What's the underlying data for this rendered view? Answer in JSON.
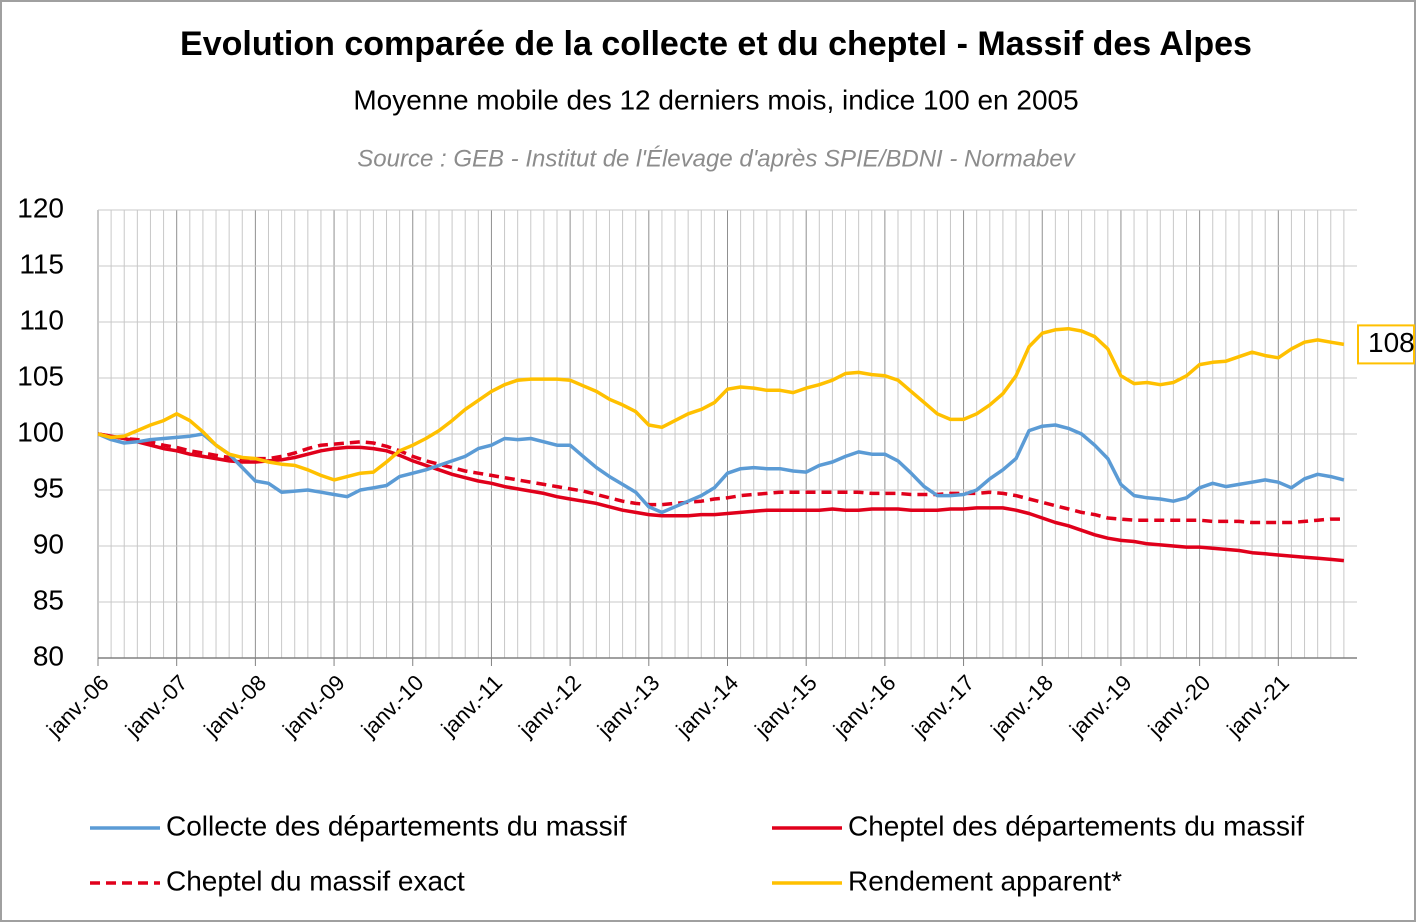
{
  "chart_data": {
    "type": "line",
    "title": "Evolution comparée de la collecte et du cheptel - Massif des Alpes",
    "subtitle": "Moyenne mobile des 12 derniers mois, indice 100 en 2005",
    "source": "Source : GEB - Institut de l'Élevage d'après SPIE/BDNI - Normabev",
    "categories": [
      "janv.-06",
      null,
      null,
      null,
      null,
      null,
      "janv.-07",
      null,
      null,
      null,
      null,
      null,
      "janv.-08",
      null,
      null,
      null,
      null,
      null,
      "janv.-09",
      null,
      null,
      null,
      null,
      null,
      "janv.-10",
      null,
      null,
      null,
      null,
      null,
      "janv.-11",
      null,
      null,
      null,
      null,
      null,
      "janv.-12",
      null,
      null,
      null,
      null,
      null,
      "janv.-13",
      null,
      null,
      null,
      null,
      null,
      "janv.-14",
      null,
      null,
      null,
      null,
      null,
      "janv.-15",
      null,
      null,
      null,
      null,
      null,
      "janv.-16",
      null,
      null,
      null,
      null,
      null,
      "janv.-17",
      null,
      null,
      null,
      null,
      null,
      "janv.-18",
      null,
      null,
      null,
      null,
      null,
      "janv.-19",
      null,
      null,
      null,
      null,
      null,
      "janv.-20",
      null,
      null,
      null,
      null,
      null,
      "janv.-21",
      null,
      null,
      null,
      null,
      null
    ],
    "series": [
      {
        "name": "Collecte des départements du massif",
        "color": "#5b9bd5",
        "dashed": false,
        "values": [
          100,
          99.5,
          99.2,
          99.3,
          99.5,
          99.6,
          99.7,
          99.8,
          100.0,
          99.0,
          98.2,
          97.0,
          95.8,
          95.6,
          94.8,
          94.9,
          95.0,
          94.8,
          94.6,
          94.4,
          95.0,
          95.2,
          95.4,
          96.2,
          96.5,
          96.8,
          97.2,
          97.6,
          98.0,
          98.7,
          99.0,
          99.6,
          99.5,
          99.6,
          99.3,
          99.0,
          99.0,
          98.0,
          97.0,
          96.2,
          95.5,
          94.8,
          93.5,
          93.0,
          93.5,
          94.0,
          94.5,
          95.2,
          96.5,
          96.9,
          97.0,
          96.9,
          96.9,
          96.7,
          96.6,
          97.2,
          97.5,
          98.0,
          98.4,
          98.2,
          98.2,
          97.6,
          96.5,
          95.3,
          94.5,
          94.5,
          94.6,
          95.0,
          96.0,
          96.8,
          97.8,
          100.3,
          100.7,
          100.8,
          100.5,
          100.0,
          99.0,
          97.8,
          95.5,
          94.5,
          94.3,
          94.2,
          94.0,
          94.3,
          95.2,
          95.6,
          95.3,
          95.5,
          95.7,
          95.9,
          95.7,
          95.2,
          96.0,
          96.4,
          96.2,
          95.9
        ]
      },
      {
        "name": "Cheptel des départements du massif",
        "color": "#e0001b",
        "dashed": false,
        "values": [
          100,
          99.8,
          99.6,
          99.3,
          99.0,
          98.7,
          98.5,
          98.2,
          98.0,
          97.8,
          97.6,
          97.5,
          97.5,
          97.6,
          97.7,
          97.9,
          98.2,
          98.5,
          98.7,
          98.8,
          98.8,
          98.7,
          98.5,
          98.1,
          97.6,
          97.2,
          96.8,
          96.4,
          96.1,
          95.8,
          95.6,
          95.3,
          95.1,
          94.9,
          94.7,
          94.4,
          94.2,
          94.0,
          93.8,
          93.5,
          93.2,
          93.0,
          92.8,
          92.7,
          92.7,
          92.7,
          92.8,
          92.8,
          92.9,
          93.0,
          93.1,
          93.2,
          93.2,
          93.2,
          93.2,
          93.2,
          93.3,
          93.2,
          93.2,
          93.3,
          93.3,
          93.3,
          93.2,
          93.2,
          93.2,
          93.3,
          93.3,
          93.4,
          93.4,
          93.4,
          93.2,
          92.9,
          92.5,
          92.1,
          91.8,
          91.4,
          91.0,
          90.7,
          90.5,
          90.4,
          90.2,
          90.1,
          90.0,
          89.9,
          89.9,
          89.8,
          89.7,
          89.6,
          89.4,
          89.3,
          89.2,
          89.1,
          89.0,
          88.9,
          88.8,
          88.7
        ]
      },
      {
        "name": "Cheptel du massif exact",
        "color": "#e0001b",
        "dashed": true,
        "values": [
          100,
          99.8,
          99.6,
          99.5,
          99.3,
          99.0,
          98.8,
          98.5,
          98.3,
          98.1,
          97.9,
          97.8,
          97.8,
          97.8,
          98.0,
          98.3,
          98.7,
          99.0,
          99.1,
          99.2,
          99.3,
          99.2,
          98.9,
          98.5,
          98.0,
          97.6,
          97.3,
          97.0,
          96.7,
          96.5,
          96.3,
          96.1,
          95.9,
          95.7,
          95.5,
          95.3,
          95.1,
          94.9,
          94.6,
          94.3,
          94.0,
          93.8,
          93.7,
          93.7,
          93.8,
          93.9,
          94.0,
          94.2,
          94.3,
          94.5,
          94.6,
          94.7,
          94.8,
          94.8,
          94.8,
          94.8,
          94.8,
          94.8,
          94.8,
          94.7,
          94.7,
          94.7,
          94.6,
          94.6,
          94.6,
          94.7,
          94.7,
          94.7,
          94.8,
          94.7,
          94.5,
          94.2,
          93.9,
          93.6,
          93.3,
          93.0,
          92.8,
          92.5,
          92.4,
          92.3,
          92.3,
          92.3,
          92.3,
          92.3,
          92.3,
          92.2,
          92.2,
          92.2,
          92.1,
          92.1,
          92.1,
          92.1,
          92.2,
          92.3,
          92.4,
          92.4
        ]
      },
      {
        "name": "Rendement apparent*",
        "color": "#ffc000",
        "dashed": false,
        "values": [
          100,
          99.7,
          99.8,
          100.3,
          100.8,
          101.2,
          101.8,
          101.2,
          100.2,
          99.0,
          98.2,
          97.9,
          97.8,
          97.5,
          97.3,
          97.2,
          96.8,
          96.3,
          95.9,
          96.2,
          96.5,
          96.6,
          97.5,
          98.5,
          99.0,
          99.6,
          100.3,
          101.2,
          102.2,
          103.0,
          103.8,
          104.4,
          104.8,
          104.9,
          104.9,
          104.9,
          104.8,
          104.3,
          103.8,
          103.1,
          102.6,
          102.0,
          100.8,
          100.6,
          101.2,
          101.8,
          102.2,
          102.8,
          104.0,
          104.2,
          104.1,
          103.9,
          103.9,
          103.7,
          104.1,
          104.4,
          104.8,
          105.4,
          105.5,
          105.3,
          105.2,
          104.8,
          103.8,
          102.8,
          101.8,
          101.3,
          101.3,
          101.8,
          102.6,
          103.6,
          105.2,
          107.8,
          109.0,
          109.3,
          109.4,
          109.2,
          108.7,
          107.6,
          105.2,
          104.5,
          104.6,
          104.4,
          104.6,
          105.2,
          106.2,
          106.4,
          106.5,
          106.9,
          107.3,
          107.0,
          106.8,
          107.6,
          108.2,
          108.4,
          108.2,
          108
        ]
      }
    ],
    "end_label_series": 3,
    "ylim": [
      80,
      120
    ],
    "yticks": [
      80,
      85,
      90,
      95,
      100,
      105,
      110,
      115,
      120
    ],
    "grid": true
  }
}
